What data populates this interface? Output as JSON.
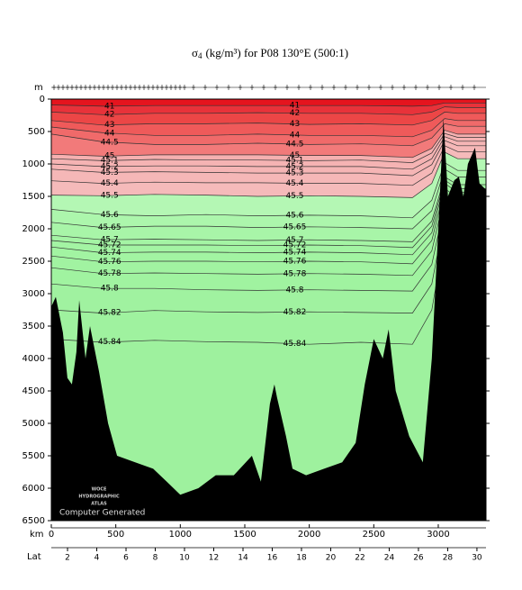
{
  "chart_data": {
    "type": "contour",
    "title_symbol": "σ",
    "title_subscript": "4",
    "title_rest": "(kg/m³) for P08 130°E (500:1)",
    "top_axis_label": "m",
    "x_label": "km",
    "lat_label": "Lat",
    "credit": "Computer Generated",
    "logo": [
      "WOCE",
      "HYDROGRAPHIC",
      "ATLAS"
    ],
    "xlim": [
      0,
      3370
    ],
    "xticks": [
      0,
      500,
      1000,
      1500,
      2000,
      2500,
      3000
    ],
    "ylim": [
      0,
      6500
    ],
    "yticks": [
      0,
      500,
      1000,
      1500,
      2000,
      2500,
      3000,
      3500,
      4000,
      4500,
      5000,
      5500,
      6000,
      6500
    ],
    "latlim": [
      0.89,
      30.62
    ],
    "latticks": [
      2,
      4,
      6,
      8,
      10,
      12,
      14,
      16,
      18,
      20,
      22,
      24,
      26,
      28,
      30
    ],
    "surface_color": "#e5141e",
    "contour_x": [
      0,
      400,
      800,
      1200,
      1600,
      2000,
      2400,
      2800,
      2950,
      3050,
      3150,
      3370
    ],
    "contours": [
      {
        "level": 41,
        "fill": "#e8323a",
        "depths": [
          90,
          110,
          100,
          100,
          100,
          100,
          100,
          110,
          100,
          60,
          60,
          60
        ]
      },
      {
        "level": 42,
        "fill": "#ec4646",
        "depths": [
          200,
          240,
          220,
          220,
          210,
          220,
          220,
          240,
          200,
          120,
          130,
          130
        ]
      },
      {
        "level": 43,
        "fill": "#ef5a5a",
        "depths": [
          330,
          400,
          380,
          380,
          370,
          390,
          380,
          400,
          330,
          200,
          220,
          220
        ]
      },
      {
        "level": 44,
        "fill": "#f06a6a",
        "depths": [
          430,
          520,
          560,
          560,
          540,
          560,
          560,
          580,
          480,
          300,
          330,
          330
        ]
      },
      {
        "level": 44.5,
        "fill": "#f27a7a",
        "depths": [
          540,
          660,
          700,
          700,
          680,
          700,
          690,
          720,
          600,
          380,
          420,
          420
        ]
      },
      {
        "level": 45,
        "fill": "#f5b0b0",
        "depths": [
          850,
          880,
          860,
          860,
          860,
          870,
          870,
          900,
          760,
          480,
          540,
          540
        ]
      },
      {
        "level": 45.1,
        "fill": "#f5b3b3",
        "depths": [
          920,
          950,
          930,
          940,
          940,
          950,
          940,
          980,
          830,
          530,
          590,
          590
        ]
      },
      {
        "level": 45.2,
        "fill": "#f5b5b5",
        "depths": [
          1000,
          1040,
          1030,
          1030,
          1040,
          1040,
          1040,
          1080,
          920,
          580,
          650,
          650
        ]
      },
      {
        "level": 45.3,
        "fill": "#f5b7b7",
        "depths": [
          1080,
          1130,
          1120,
          1130,
          1140,
          1140,
          1140,
          1180,
          1010,
          640,
          720,
          720
        ]
      },
      {
        "level": 45.4,
        "fill": "#f5baba",
        "depths": [
          1260,
          1300,
          1280,
          1290,
          1290,
          1300,
          1300,
          1330,
          1140,
          720,
          810,
          810
        ]
      },
      {
        "level": 45.5,
        "fill": "#b4f7b4",
        "depths": [
          1480,
          1490,
          1470,
          1480,
          1500,
          1490,
          1500,
          1520,
          1300,
          820,
          920,
          920
        ]
      },
      {
        "level": 45.6,
        "fill": "#acf6ac",
        "depths": [
          1700,
          1780,
          1800,
          1780,
          1800,
          1790,
          1800,
          1830,
          1560,
          980,
          1100,
          1100
        ]
      },
      {
        "level": 45.65,
        "fill": "#a8f5a8",
        "depths": [
          1900,
          1980,
          1960,
          1960,
          1980,
          1970,
          1980,
          2000,
          1720,
          1080,
          1200,
          1200
        ]
      },
      {
        "level": 45.7,
        "fill": "#a4f4a4",
        "depths": [
          2100,
          2170,
          2160,
          2170,
          2180,
          2170,
          2180,
          2200,
          1880,
          1200,
          1320,
          1320
        ]
      },
      {
        "level": 45.72,
        "fill": "#a3f4a3",
        "depths": [
          2180,
          2250,
          2250,
          2250,
          2260,
          2250,
          2260,
          2290,
          1960,
          1250,
          1380,
          1380
        ]
      },
      {
        "level": 45.74,
        "fill": "#a2f4a2",
        "depths": [
          2280,
          2370,
          2360,
          2360,
          2370,
          2360,
          2370,
          2400,
          2060,
          1300,
          1440,
          1440
        ]
      },
      {
        "level": 45.76,
        "fill": "#a1f3a1",
        "depths": [
          2420,
          2510,
          2500,
          2500,
          2510,
          2500,
          2510,
          2540,
          2180,
          1380,
          1520,
          1520
        ]
      },
      {
        "level": 45.78,
        "fill": "#a0f3a0",
        "depths": [
          2600,
          2690,
          2680,
          2690,
          2700,
          2690,
          2700,
          2720,
          2340,
          1480,
          1620,
          1620
        ]
      },
      {
        "level": 45.8,
        "fill": "#a0f2a0",
        "depths": [
          2850,
          2920,
          2920,
          2940,
          2950,
          2940,
          2950,
          2960,
          2550,
          1620,
          1780,
          1780
        ]
      },
      {
        "level": 45.82,
        "fill": "#9ff29f",
        "depths": [
          3250,
          3300,
          3260,
          3280,
          3290,
          3280,
          3290,
          3300,
          2850,
          1800,
          1980,
          1980
        ]
      },
      {
        "level": 45.84,
        "fill": "#9ef19e",
        "depths": [
          3700,
          3750,
          3720,
          3740,
          3750,
          3780,
          3750,
          3780,
          3250,
          2100,
          2300,
          2300
        ]
      }
    ],
    "bathymetry": {
      "color": "#000000",
      "x": [
        0,
        35,
        90,
        125,
        160,
        195,
        216,
        265,
        300,
        370,
        440,
        510,
        650,
        790,
        895,
        1000,
        1140,
        1275,
        1415,
        1555,
        1625,
        1695,
        1730,
        1750,
        1820,
        1870,
        1975,
        2115,
        2255,
        2360,
        2430,
        2500,
        2570,
        2615,
        2670,
        2775,
        2880,
        2950,
        3000,
        3040,
        3075,
        3125,
        3160,
        3195,
        3230,
        3285,
        3320,
        3370
      ],
      "depth": [
        3200,
        3050,
        3600,
        4300,
        4400,
        3900,
        3100,
        4000,
        3500,
        4200,
        5000,
        5500,
        5600,
        5700,
        5900,
        6100,
        6000,
        5800,
        5800,
        5500,
        5900,
        4700,
        4400,
        4600,
        5200,
        5700,
        5800,
        5700,
        5600,
        5300,
        4400,
        3700,
        4000,
        3550,
        4500,
        5200,
        5600,
        4000,
        2000,
        300,
        1500,
        1250,
        1200,
        1500,
        1000,
        750,
        1300,
        1400
      ]
    }
  }
}
